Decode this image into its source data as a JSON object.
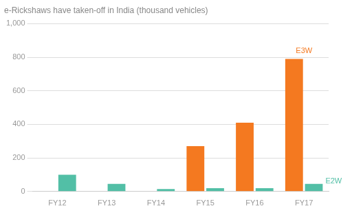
{
  "chart_data": {
    "type": "bar",
    "title": "e-Rickshaws have taken-off in India (thousand vehicles)",
    "categories": [
      "FY12",
      "FY13",
      "FY14",
      "FY15",
      "FY16",
      "FY17"
    ],
    "series": [
      {
        "name": "E3W",
        "color": "#F47920",
        "values": [
          0,
          0,
          0,
          270,
          410,
          790
        ]
      },
      {
        "name": "E2W",
        "color": "#52BFA6",
        "values": [
          100,
          45,
          15,
          20,
          20,
          45
        ]
      }
    ],
    "ylim": [
      0,
      1000
    ],
    "yticks": [
      0,
      200,
      400,
      600,
      800,
      {
        "value": 1000,
        "label": "1,000"
      }
    ],
    "grid": true,
    "annotations": [
      "E3W",
      "E2W"
    ]
  }
}
